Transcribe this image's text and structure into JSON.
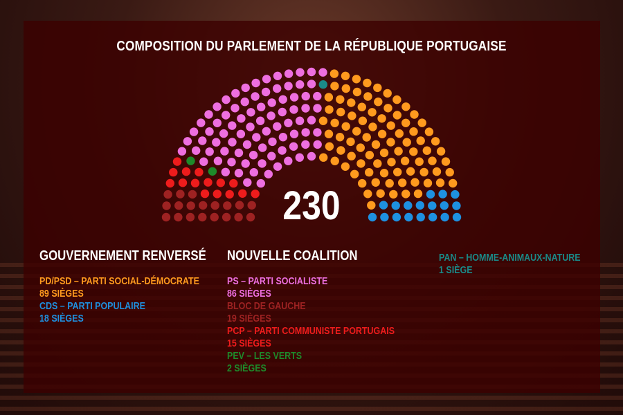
{
  "title": "COMPOSITION DU PARLEMENT DE LA RÉPUBLIQUE PORTUGAISE",
  "total": "230",
  "columns": {
    "gouvernement": {
      "heading": "GOUVERNEMENT RENVERSÉ",
      "parties": [
        {
          "name": "PD/PSD – PARTI SOCIAL-DÉMOCRATE",
          "seats": "89 SIÈGES",
          "color": "#ff9a1e"
        },
        {
          "name": "CDS – PARTI POPULAIRE",
          "seats": "18 SIÈGES",
          "color": "#1e90e0"
        }
      ]
    },
    "coalition": {
      "heading": "NOUVELLE COALITION",
      "parties": [
        {
          "name": "PS – PARTI SOCIALISTE",
          "seats": "86 SIÈGES",
          "color": "#ee6fe0"
        },
        {
          "name": "BLOC DE GAUCHE",
          "seats": "19 SIÈGES",
          "color": "#9e2222"
        },
        {
          "name": "PCP – PARTI COMMUNISTE PORTUGAIS",
          "seats": "15 SIÈGES",
          "color": "#ee1c1c"
        },
        {
          "name": "PEV – LES VERTS",
          "seats": "2 SIÈGES",
          "color": "#1e8a2a"
        }
      ]
    },
    "other": {
      "parties": [
        {
          "name": "PAN – HOMME-ANIMAUX-NATURE",
          "seats": "1 SIÈGE",
          "color": "#1a8a88"
        }
      ]
    }
  },
  "chart_data": {
    "type": "parliament",
    "total_seats": 230,
    "series": [
      {
        "name": "BLOC DE GAUCHE",
        "value": 19,
        "color": "#9e2222"
      },
      {
        "name": "PCP – PARTI COMMUNISTE PORTUGAIS",
        "value": 15,
        "color": "#ee1c1c"
      },
      {
        "name": "PEV – LES VERTS",
        "value": 2,
        "color": "#1e8a2a"
      },
      {
        "name": "PS – PARTI SOCIALISTE",
        "value": 86,
        "color": "#ee6fe0"
      },
      {
        "name": "PAN – HOMME-ANIMAUX-NATURE",
        "value": 1,
        "color": "#1a8a88"
      },
      {
        "name": "PD/PSD – PARTI SOCIAL-DÉMOCRATE",
        "value": 89,
        "color": "#ff9a1e"
      },
      {
        "name": "CDS – PARTI POPULAIRE",
        "value": 18,
        "color": "#1e90e0"
      }
    ]
  }
}
